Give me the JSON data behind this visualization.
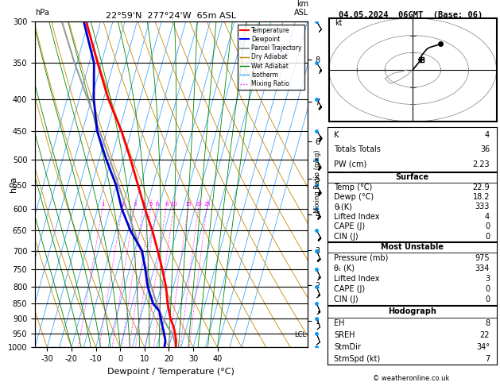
{
  "title_left": "22°59'N  277°24'W  65m ASL",
  "title_right": "04.05.2024  06GMT  (Base: 06)",
  "xlabel": "Dewpoint / Temperature (°C)",
  "ylabel_left": "hPa",
  "pressure_levels": [
    300,
    350,
    400,
    450,
    500,
    550,
    600,
    650,
    700,
    750,
    800,
    850,
    900,
    950,
    1000
  ],
  "temp_ticks": [
    -30,
    -20,
    -10,
    0,
    10,
    20,
    30,
    40
  ],
  "km_ticks": [
    1,
    2,
    3,
    4,
    5,
    6,
    7,
    8
  ],
  "km_pressures": [
    907,
    795,
    698,
    613,
    537,
    467,
    404,
    346
  ],
  "lcl_pressure": 955,
  "temperature_profile": {
    "pressure": [
      1000,
      975,
      950,
      925,
      900,
      875,
      850,
      800,
      750,
      700,
      650,
      600,
      550,
      500,
      450,
      400,
      350,
      300
    ],
    "temp": [
      22.9,
      22.2,
      21.0,
      19.5,
      17.5,
      16.0,
      14.5,
      12.0,
      8.5,
      4.5,
      0.0,
      -5.5,
      -11.0,
      -17.0,
      -24.0,
      -33.0,
      -41.5,
      -51.0
    ]
  },
  "dewpoint_profile": {
    "pressure": [
      1000,
      975,
      950,
      925,
      900,
      875,
      850,
      800,
      750,
      700,
      650,
      600,
      550,
      500,
      450,
      400,
      350,
      300
    ],
    "temp": [
      18.2,
      17.8,
      16.5,
      15.0,
      13.5,
      12.0,
      8.5,
      4.5,
      1.5,
      -2.0,
      -9.0,
      -15.0,
      -20.0,
      -27.0,
      -34.0,
      -39.0,
      -43.0,
      -52.0
    ]
  },
  "parcel_profile": {
    "pressure": [
      1000,
      975,
      955,
      925,
      900,
      875,
      850,
      800,
      750,
      700,
      650,
      600,
      550,
      500,
      450,
      400,
      350,
      300
    ],
    "temp": [
      22.9,
      21.5,
      20.2,
      17.0,
      14.5,
      12.0,
      10.0,
      6.0,
      2.0,
      -2.5,
      -7.5,
      -13.0,
      -19.0,
      -25.5,
      -33.0,
      -41.5,
      -51.0,
      -61.0
    ]
  },
  "wind_barbs": {
    "pressure": [
      1000,
      950,
      900,
      850,
      800,
      750,
      700,
      650,
      600,
      550,
      500,
      450,
      400,
      350,
      300
    ],
    "u": [
      -2,
      -3,
      -4,
      -5,
      -5,
      -7,
      -8,
      -10,
      -10,
      -12,
      -13,
      -15,
      -12,
      -8,
      -5
    ],
    "v": [
      5,
      8,
      10,
      12,
      13,
      15,
      17,
      18,
      20,
      20,
      22,
      20,
      18,
      12,
      8
    ]
  },
  "hodograph_u": [
    0,
    1,
    2,
    3,
    3,
    4,
    5,
    6,
    8,
    10
  ],
  "hodograph_v": [
    0,
    2,
    4,
    6,
    8,
    10,
    12,
    13,
    14,
    15
  ],
  "storm_u": 3,
  "storm_v": 6,
  "stats": {
    "K": 4,
    "Totals_Totals": 36,
    "PW_cm": "2.23",
    "Surface_Temp": "22.9",
    "Surface_Dewp": "18.2",
    "Surface_theta_e": 333,
    "Surface_LI": 4,
    "Surface_CAPE": 0,
    "Surface_CIN": 0,
    "MU_Pressure": 975,
    "MU_theta_e": 334,
    "MU_LI": 3,
    "MU_CAPE": 0,
    "MU_CIN": 0,
    "EH": 8,
    "SREH": 22,
    "StmDir": "34°",
    "StmSpd": 7
  },
  "colors": {
    "temperature": "#FF0000",
    "dewpoint": "#0000CC",
    "parcel": "#999999",
    "dry_adiabat": "#CC8800",
    "wet_adiabat": "#008800",
    "isotherm": "#44AAFF",
    "mixing_ratio_dot": "#FF00FF",
    "background": "#FFFFFF"
  },
  "pmin": 300,
  "pmax": 1000,
  "tmin": -35,
  "tmax": 40,
  "skew_factor": 37.0
}
